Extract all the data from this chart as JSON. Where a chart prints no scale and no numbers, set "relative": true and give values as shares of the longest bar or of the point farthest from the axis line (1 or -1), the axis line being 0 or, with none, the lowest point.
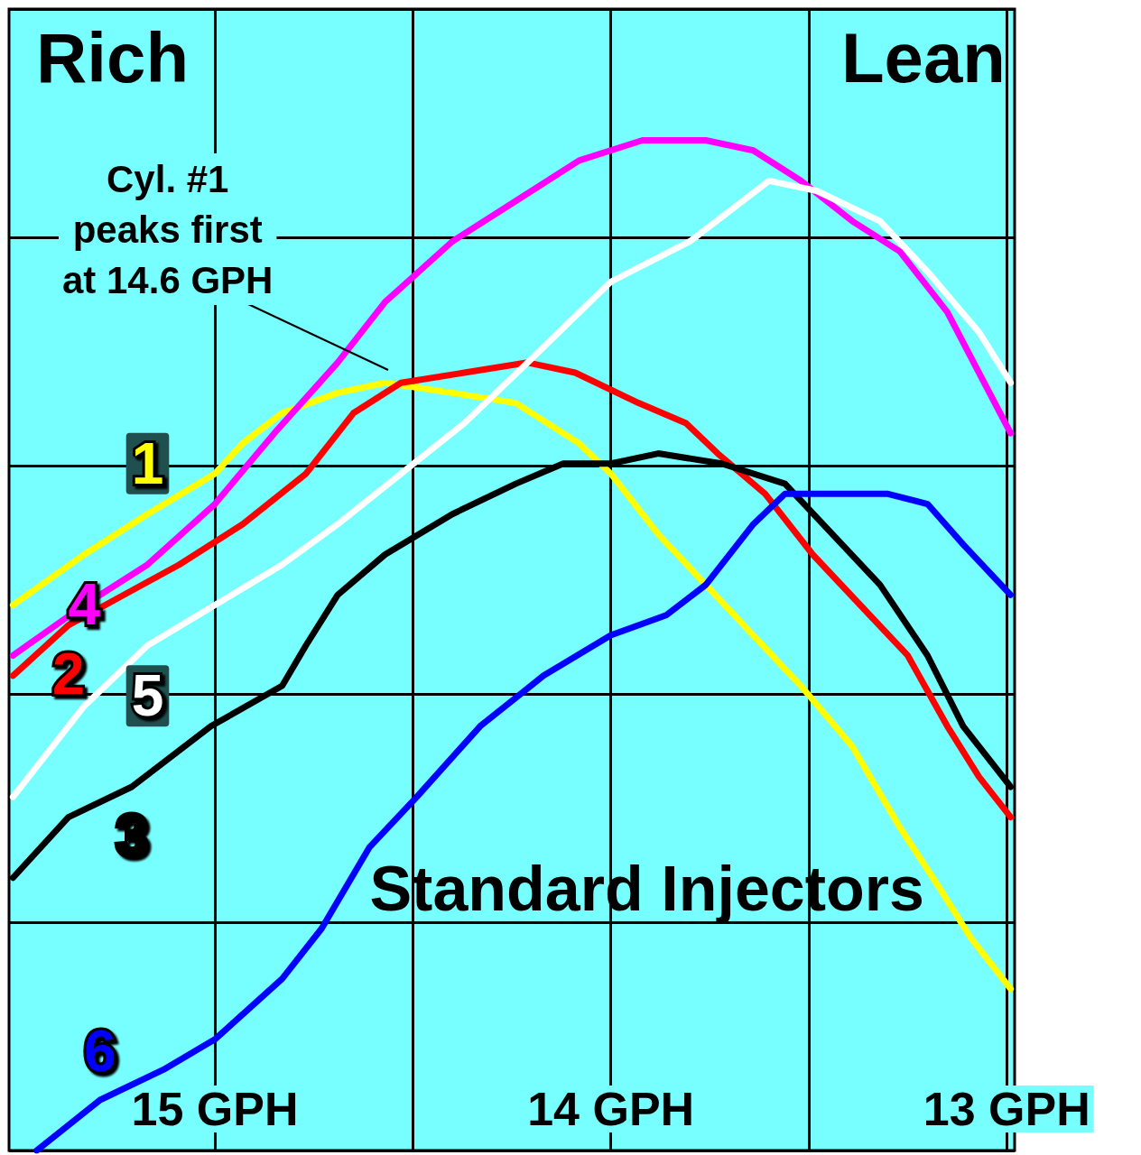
{
  "chart_data": {
    "type": "line",
    "relative": true,
    "grid": true,
    "line_style": "solid",
    "xlim": [
      15.52,
      12.98
    ],
    "xticks": [
      {
        "value": 15,
        "label": "15 GPH"
      },
      {
        "value": 14.5,
        "label": null
      },
      {
        "value": 14,
        "label": "14 GPH"
      },
      {
        "value": 13.5,
        "label": null
      },
      {
        "value": 13,
        "label": "13 GPH"
      }
    ],
    "annotations": [
      "Rich",
      "Lean",
      "Cyl. #1\npeaks first\nat 14.6 GPH",
      "Standard Injectors"
    ],
    "series": [
      {
        "name": "1",
        "color": "#ffff00",
        "x": [
          15.51,
          15.33,
          15.17,
          15.0,
          14.93,
          14.83,
          14.69,
          14.57,
          14.4,
          14.24,
          14.08,
          14.0,
          13.88,
          13.76,
          13.64,
          13.52,
          13.39,
          13.27,
          13.17,
          13.09,
          12.99
        ],
        "values": [
          0.54,
          0.59,
          0.63,
          0.67,
          0.7,
          0.73,
          0.75,
          0.76,
          0.75,
          0.74,
          0.7,
          0.67,
          0.61,
          0.56,
          0.51,
          0.46,
          0.4,
          0.32,
          0.26,
          0.21,
          0.16
        ]
      },
      {
        "name": "2",
        "color": "#ff0000",
        "x": [
          15.51,
          15.37,
          15.23,
          15.09,
          14.93,
          14.77,
          14.65,
          14.53,
          14.37,
          14.21,
          14.09,
          13.93,
          13.81,
          13.73,
          13.61,
          13.49,
          13.37,
          13.25,
          13.15,
          13.07,
          12.99
        ],
        "values": [
          0.47,
          0.52,
          0.55,
          0.58,
          0.62,
          0.67,
          0.73,
          0.76,
          0.77,
          0.78,
          0.77,
          0.74,
          0.72,
          0.69,
          0.65,
          0.59,
          0.54,
          0.49,
          0.42,
          0.37,
          0.33
        ]
      },
      {
        "name": "3",
        "color": "#000000",
        "x": [
          15.51,
          15.37,
          15.21,
          15.01,
          14.83,
          14.77,
          14.69,
          14.57,
          14.4,
          14.24,
          14.12,
          14.0,
          13.88,
          13.72,
          13.56,
          13.44,
          13.32,
          13.2,
          13.11,
          12.99
        ],
        "values": [
          0.27,
          0.33,
          0.36,
          0.42,
          0.46,
          0.5,
          0.55,
          0.59,
          0.63,
          0.66,
          0.68,
          0.68,
          0.69,
          0.68,
          0.66,
          0.61,
          0.56,
          0.49,
          0.42,
          0.36
        ]
      },
      {
        "name": "4",
        "color": "#ff00ff",
        "x": [
          15.51,
          15.33,
          15.17,
          15.0,
          14.85,
          14.69,
          14.57,
          14.4,
          14.24,
          14.08,
          13.92,
          13.76,
          13.64,
          13.52,
          13.39,
          13.27,
          13.15,
          13.07,
          12.99
        ],
        "values": [
          0.49,
          0.54,
          0.58,
          0.64,
          0.71,
          0.78,
          0.84,
          0.9,
          0.94,
          0.98,
          1.0,
          1.0,
          0.99,
          0.96,
          0.92,
          0.89,
          0.83,
          0.77,
          0.71
        ]
      },
      {
        "name": "5",
        "color": "#ffffff",
        "x": [
          15.51,
          15.33,
          15.17,
          15.0,
          14.83,
          14.69,
          14.53,
          14.37,
          14.21,
          14.0,
          13.8,
          13.6,
          13.48,
          13.32,
          13.2,
          13.07,
          12.99
        ],
        "values": [
          0.35,
          0.44,
          0.5,
          0.54,
          0.58,
          0.62,
          0.67,
          0.72,
          0.78,
          0.86,
          0.9,
          0.96,
          0.95,
          0.92,
          0.87,
          0.81,
          0.76
        ]
      },
      {
        "name": "6",
        "color": "#0000ff",
        "x": [
          15.45,
          15.29,
          15.13,
          15.0,
          14.83,
          14.73,
          14.61,
          14.49,
          14.33,
          14.17,
          14.0,
          13.86,
          13.76,
          13.64,
          13.56,
          13.44,
          13.3,
          13.2,
          13.11,
          12.99
        ],
        "values": [
          0,
          0.05,
          0.08,
          0.11,
          0.17,
          0.22,
          0.3,
          0.35,
          0.42,
          0.47,
          0.51,
          0.53,
          0.56,
          0.62,
          0.65,
          0.65,
          0.65,
          0.64,
          0.6,
          0.55
        ]
      }
    ]
  }
}
